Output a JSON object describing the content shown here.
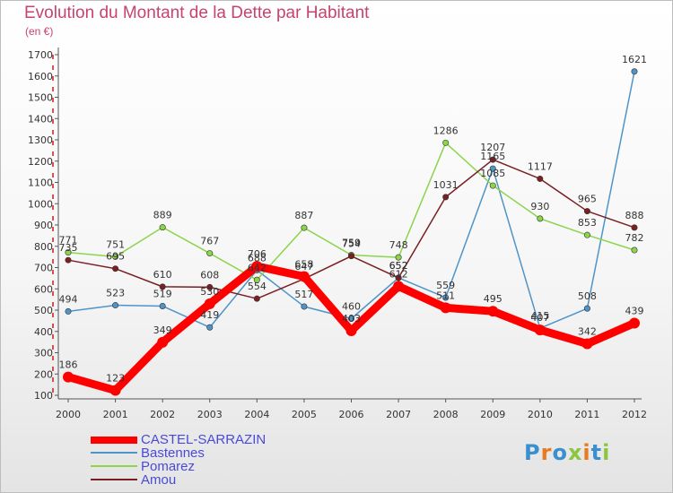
{
  "header": {
    "title": "Evolution du Montant de la Dette par Habitant",
    "subtitle": "(en €)"
  },
  "chart_data": {
    "type": "line",
    "title": "Evolution du Montant de la Dette par Habitant",
    "subtitle": "(en €)",
    "x": [
      "2000",
      "2001",
      "2002",
      "2003",
      "2004",
      "2005",
      "2006",
      "2007",
      "2008",
      "2009",
      "2010",
      "2011",
      "2012"
    ],
    "yticks": [
      100,
      200,
      300,
      400,
      500,
      600,
      700,
      800,
      900,
      1000,
      1100,
      1200,
      1300,
      1400,
      1500,
      1600,
      1700
    ],
    "ylim": [
      100,
      1700
    ],
    "grid": false,
    "legend_position": "bottom-left",
    "series": [
      {
        "name": "CASTEL-SARRAZIN",
        "color": "#ff0000",
        "values": [
          186,
          123,
          349,
          530,
          706,
          658,
          403,
          612,
          511,
          495,
          407,
          342,
          439
        ]
      },
      {
        "name": "Bastennes",
        "color": "#4f94c8",
        "values": [
          494,
          523,
          519,
          419,
          688,
          517,
          460,
          652,
          559,
          1165,
          415,
          508,
          1621
        ]
      },
      {
        "name": "Pomarez",
        "color": "#8cd44c",
        "values": [
          771,
          751,
          889,
          767,
          642,
          887,
          759,
          748,
          1286,
          1085,
          930,
          853,
          782
        ]
      },
      {
        "name": "Amou",
        "color": "#7a1f22",
        "values": [
          735,
          695,
          610,
          608,
          554,
          647,
          754,
          652,
          1031,
          1207,
          1117,
          965,
          888
        ]
      }
    ]
  },
  "logo": {
    "letters": [
      "P",
      "r",
      "o",
      "x",
      "i",
      "t",
      "i"
    ],
    "colors": [
      "#3a8fd0",
      "#e97a1f",
      "#3a8fd0",
      "#8cc63f",
      "#e97a1f",
      "#3a8fd0",
      "#8cc63f"
    ]
  }
}
